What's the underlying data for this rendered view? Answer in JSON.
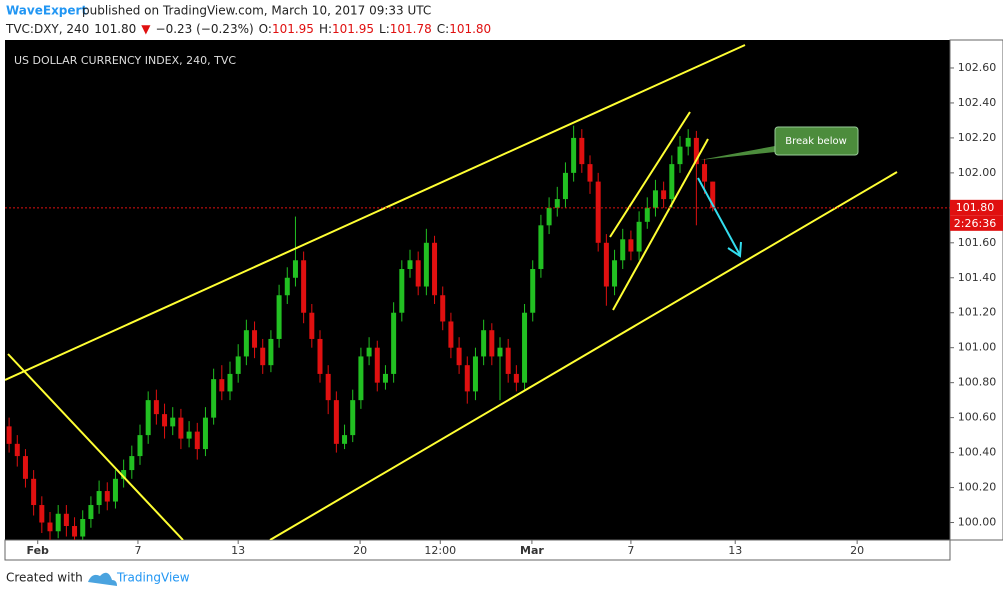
{
  "header": {
    "author": "WaveExpert",
    "published": "published on TradingView.com, March 10, 2017 09:33 UTC",
    "symbol_line": [
      {
        "text": "TVC:DXY, 240",
        "color": "#222"
      },
      {
        "text": "101.80",
        "color": "#222"
      },
      {
        "text": "▼",
        "color": "#e01010"
      },
      {
        "text": "−0.23 (−0.23%)",
        "color": "#222"
      },
      {
        "text": "O:",
        "color": "#222"
      },
      {
        "text": "101.95",
        "color": "#e01010"
      },
      {
        "text": "H:",
        "color": "#222"
      },
      {
        "text": "101.95",
        "color": "#e01010"
      },
      {
        "text": "L:",
        "color": "#222"
      },
      {
        "text": "101.78",
        "color": "#e01010"
      },
      {
        "text": "C:",
        "color": "#222"
      },
      {
        "text": "101.80",
        "color": "#e01010"
      }
    ]
  },
  "chart_data": {
    "type": "candlestick",
    "title": "US DOLLAR CURRENCY INDEX, 240, TVC",
    "up_color": "#22c022",
    "down_color": "#e01010",
    "grid": false,
    "xlim": [
      -1,
      230
    ],
    "ylim": [
      99.9,
      102.76
    ],
    "xticks": [
      {
        "value": 7,
        "label": "Feb"
      },
      {
        "value": 31.5,
        "label": "7"
      },
      {
        "value": 56,
        "label": "13"
      },
      {
        "value": 85.8,
        "label": "20"
      },
      {
        "value": 105.4,
        "label": "12:00"
      },
      {
        "value": 127.8,
        "label": "Mar"
      },
      {
        "value": 152,
        "label": "7"
      },
      {
        "value": 177.5,
        "label": "13"
      },
      {
        "value": 207.3,
        "label": "20"
      }
    ],
    "yticks": [
      {
        "value": 100,
        "label": "100.00"
      },
      {
        "value": 100.2,
        "label": "100.20"
      },
      {
        "value": 100.4,
        "label": "100.40"
      },
      {
        "value": 100.6,
        "label": "100.60"
      },
      {
        "value": 100.8,
        "label": "100.80"
      },
      {
        "value": 101,
        "label": "101.00"
      },
      {
        "value": 101.2,
        "label": "101.20"
      },
      {
        "value": 101.4,
        "label": "101.40"
      },
      {
        "value": 101.6,
        "label": "101.60"
      },
      {
        "value": 101.8,
        "label": "101.80"
      },
      {
        "value": 102,
        "label": "102.00"
      },
      {
        "value": 102.2,
        "label": "102.20"
      },
      {
        "value": 102.4,
        "label": "102.40"
      },
      {
        "value": 102.6,
        "label": "102.60"
      }
    ],
    "last_price": {
      "value": 101.8,
      "label": "101.80"
    },
    "countdown": "2:26:36",
    "annotations": [
      "Break below"
    ],
    "x": [
      0,
      2,
      4,
      6,
      8,
      10,
      12,
      14,
      16,
      18,
      20,
      22,
      24,
      26,
      28,
      30,
      32,
      34,
      36,
      38,
      40,
      42,
      44,
      46,
      48,
      50,
      52,
      54,
      56,
      58,
      60,
      62,
      64,
      66,
      68,
      70,
      72,
      74,
      76,
      78,
      80,
      82,
      84,
      86,
      88,
      90,
      92,
      94,
      96,
      98,
      100,
      102,
      104,
      106,
      108,
      110,
      112,
      114,
      116,
      118,
      120,
      122,
      124,
      126,
      128,
      130,
      132,
      134,
      136,
      138,
      140,
      142,
      144,
      146,
      148,
      150,
      152,
      154,
      156,
      158,
      160,
      162,
      164,
      166,
      168,
      170,
      172
    ],
    "open": [
      100.55,
      100.45,
      100.38,
      100.25,
      100.1,
      100.0,
      99.95,
      100.05,
      99.98,
      99.92,
      100.02,
      100.1,
      100.18,
      100.12,
      100.25,
      100.3,
      100.38,
      100.5,
      100.7,
      100.62,
      100.55,
      100.6,
      100.48,
      100.52,
      100.42,
      100.6,
      100.82,
      100.75,
      100.85,
      100.95,
      101.1,
      101.0,
      100.9,
      101.05,
      101.3,
      101.4,
      101.5,
      101.2,
      101.05,
      100.85,
      100.7,
      100.45,
      100.5,
      100.7,
      100.95,
      101.0,
      100.8,
      100.85,
      101.2,
      101.45,
      101.5,
      101.35,
      101.6,
      101.3,
      101.15,
      101.0,
      100.9,
      100.75,
      100.95,
      101.1,
      100.95,
      101.0,
      100.85,
      100.8,
      101.2,
      101.45,
      101.7,
      101.8,
      101.85,
      102.0,
      102.2,
      102.05,
      101.95,
      101.6,
      101.35,
      101.5,
      101.62,
      101.55,
      101.72,
      101.8,
      101.9,
      101.85,
      102.05,
      102.15,
      102.2,
      102.05,
      101.95
    ],
    "high": [
      100.6,
      100.5,
      100.42,
      100.3,
      100.15,
      100.06,
      100.1,
      100.1,
      100.03,
      100.07,
      100.15,
      100.24,
      100.23,
      100.3,
      100.36,
      100.44,
      100.56,
      100.75,
      100.76,
      100.68,
      100.66,
      100.65,
      100.58,
      100.57,
      100.66,
      100.88,
      100.9,
      100.92,
      101.02,
      101.16,
      101.15,
      101.05,
      101.1,
      101.36,
      101.46,
      101.75,
      101.55,
      101.25,
      101.1,
      100.9,
      100.75,
      100.56,
      100.76,
      101.0,
      101.06,
      101.04,
      100.9,
      101.26,
      101.5,
      101.56,
      101.55,
      101.68,
      101.64,
      101.35,
      101.2,
      101.06,
      100.95,
      101.0,
      101.16,
      101.14,
      101.06,
      101.05,
      100.9,
      101.25,
      101.5,
      101.76,
      101.86,
      101.92,
      102.06,
      102.27,
      102.25,
      102.1,
      102.0,
      101.65,
      101.56,
      101.68,
      101.67,
      101.78,
      101.86,
      101.96,
      101.95,
      102.1,
      102.21,
      102.25,
      102.24,
      102.08,
      101.95
    ],
    "low": [
      100.4,
      100.32,
      100.2,
      100.04,
      99.94,
      99.9,
      99.91,
      99.92,
      99.9,
      99.9,
      99.97,
      100.05,
      100.07,
      100.08,
      100.2,
      100.25,
      100.33,
      100.45,
      100.56,
      100.48,
      100.5,
      100.42,
      100.43,
      100.36,
      100.38,
      100.56,
      100.7,
      100.7,
      100.8,
      100.9,
      100.94,
      100.85,
      100.86,
      101.0,
      101.25,
      101.35,
      101.14,
      101.0,
      100.8,
      100.62,
      100.4,
      100.42,
      100.46,
      100.65,
      100.9,
      100.75,
      100.76,
      100.8,
      101.15,
      101.4,
      101.3,
      101.3,
      101.25,
      101.1,
      100.94,
      100.85,
      100.68,
      100.7,
      100.9,
      100.9,
      100.7,
      100.8,
      100.75,
      100.76,
      101.15,
      101.4,
      101.65,
      101.75,
      101.8,
      101.95,
      102.0,
      101.88,
      101.55,
      101.24,
      101.3,
      101.45,
      101.5,
      101.5,
      101.68,
      101.75,
      101.8,
      101.8,
      102.0,
      102.1,
      101.7,
      101.88,
      101.78
    ],
    "close": [
      100.45,
      100.38,
      100.25,
      100.1,
      100.0,
      99.95,
      100.05,
      99.98,
      99.92,
      100.02,
      100.1,
      100.18,
      100.12,
      100.25,
      100.3,
      100.38,
      100.5,
      100.7,
      100.62,
      100.55,
      100.6,
      100.48,
      100.52,
      100.42,
      100.6,
      100.82,
      100.75,
      100.85,
      100.95,
      101.1,
      101.0,
      100.9,
      101.05,
      101.3,
      101.4,
      101.5,
      101.2,
      101.05,
      100.85,
      100.7,
      100.45,
      100.5,
      100.7,
      100.95,
      101.0,
      100.8,
      100.85,
      101.2,
      101.45,
      101.5,
      101.35,
      101.6,
      101.3,
      101.15,
      101.0,
      100.9,
      100.75,
      100.95,
      101.1,
      100.95,
      101.0,
      100.85,
      100.8,
      101.2,
      101.45,
      101.7,
      101.8,
      101.85,
      102.0,
      102.2,
      102.05,
      101.95,
      101.6,
      101.35,
      101.5,
      101.62,
      101.55,
      101.72,
      101.8,
      101.9,
      101.85,
      102.05,
      102.15,
      102.2,
      102.05,
      101.95,
      101.8
    ]
  },
  "footer": {
    "created": "Created with",
    "brand": "TradingView"
  }
}
